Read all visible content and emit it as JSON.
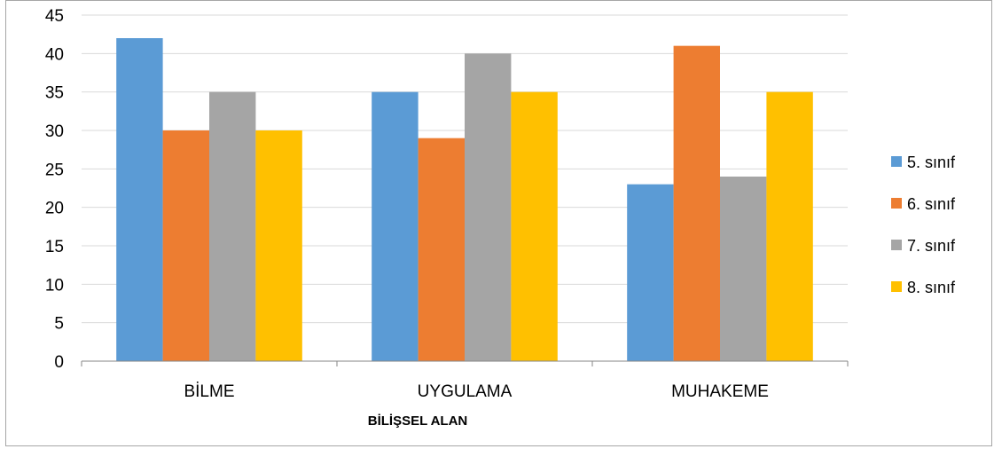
{
  "chart_data": {
    "type": "bar",
    "categories": [
      "BİLME",
      "UYGULAMA",
      "MUHAKEME"
    ],
    "series": [
      {
        "name": "5. sınıf",
        "color": "#5b9bd5",
        "values": [
          42,
          35,
          23
        ]
      },
      {
        "name": "6. sınıf",
        "color": "#ed7d31",
        "values": [
          30,
          29,
          41
        ]
      },
      {
        "name": "7. sınıf",
        "color": "#a5a5a5",
        "values": [
          35,
          40,
          24
        ]
      },
      {
        "name": "8. sınıf",
        "color": "#ffc000",
        "values": [
          30,
          35,
          35
        ]
      }
    ],
    "xlabel": "BİLİŞSEL ALAN",
    "ylabel": "",
    "ylim": [
      0,
      45
    ],
    "yticks": [
      "0",
      "5",
      "10",
      "15",
      "20",
      "25",
      "30",
      "35",
      "40",
      "45"
    ],
    "grid": true,
    "legend_position": "right"
  }
}
